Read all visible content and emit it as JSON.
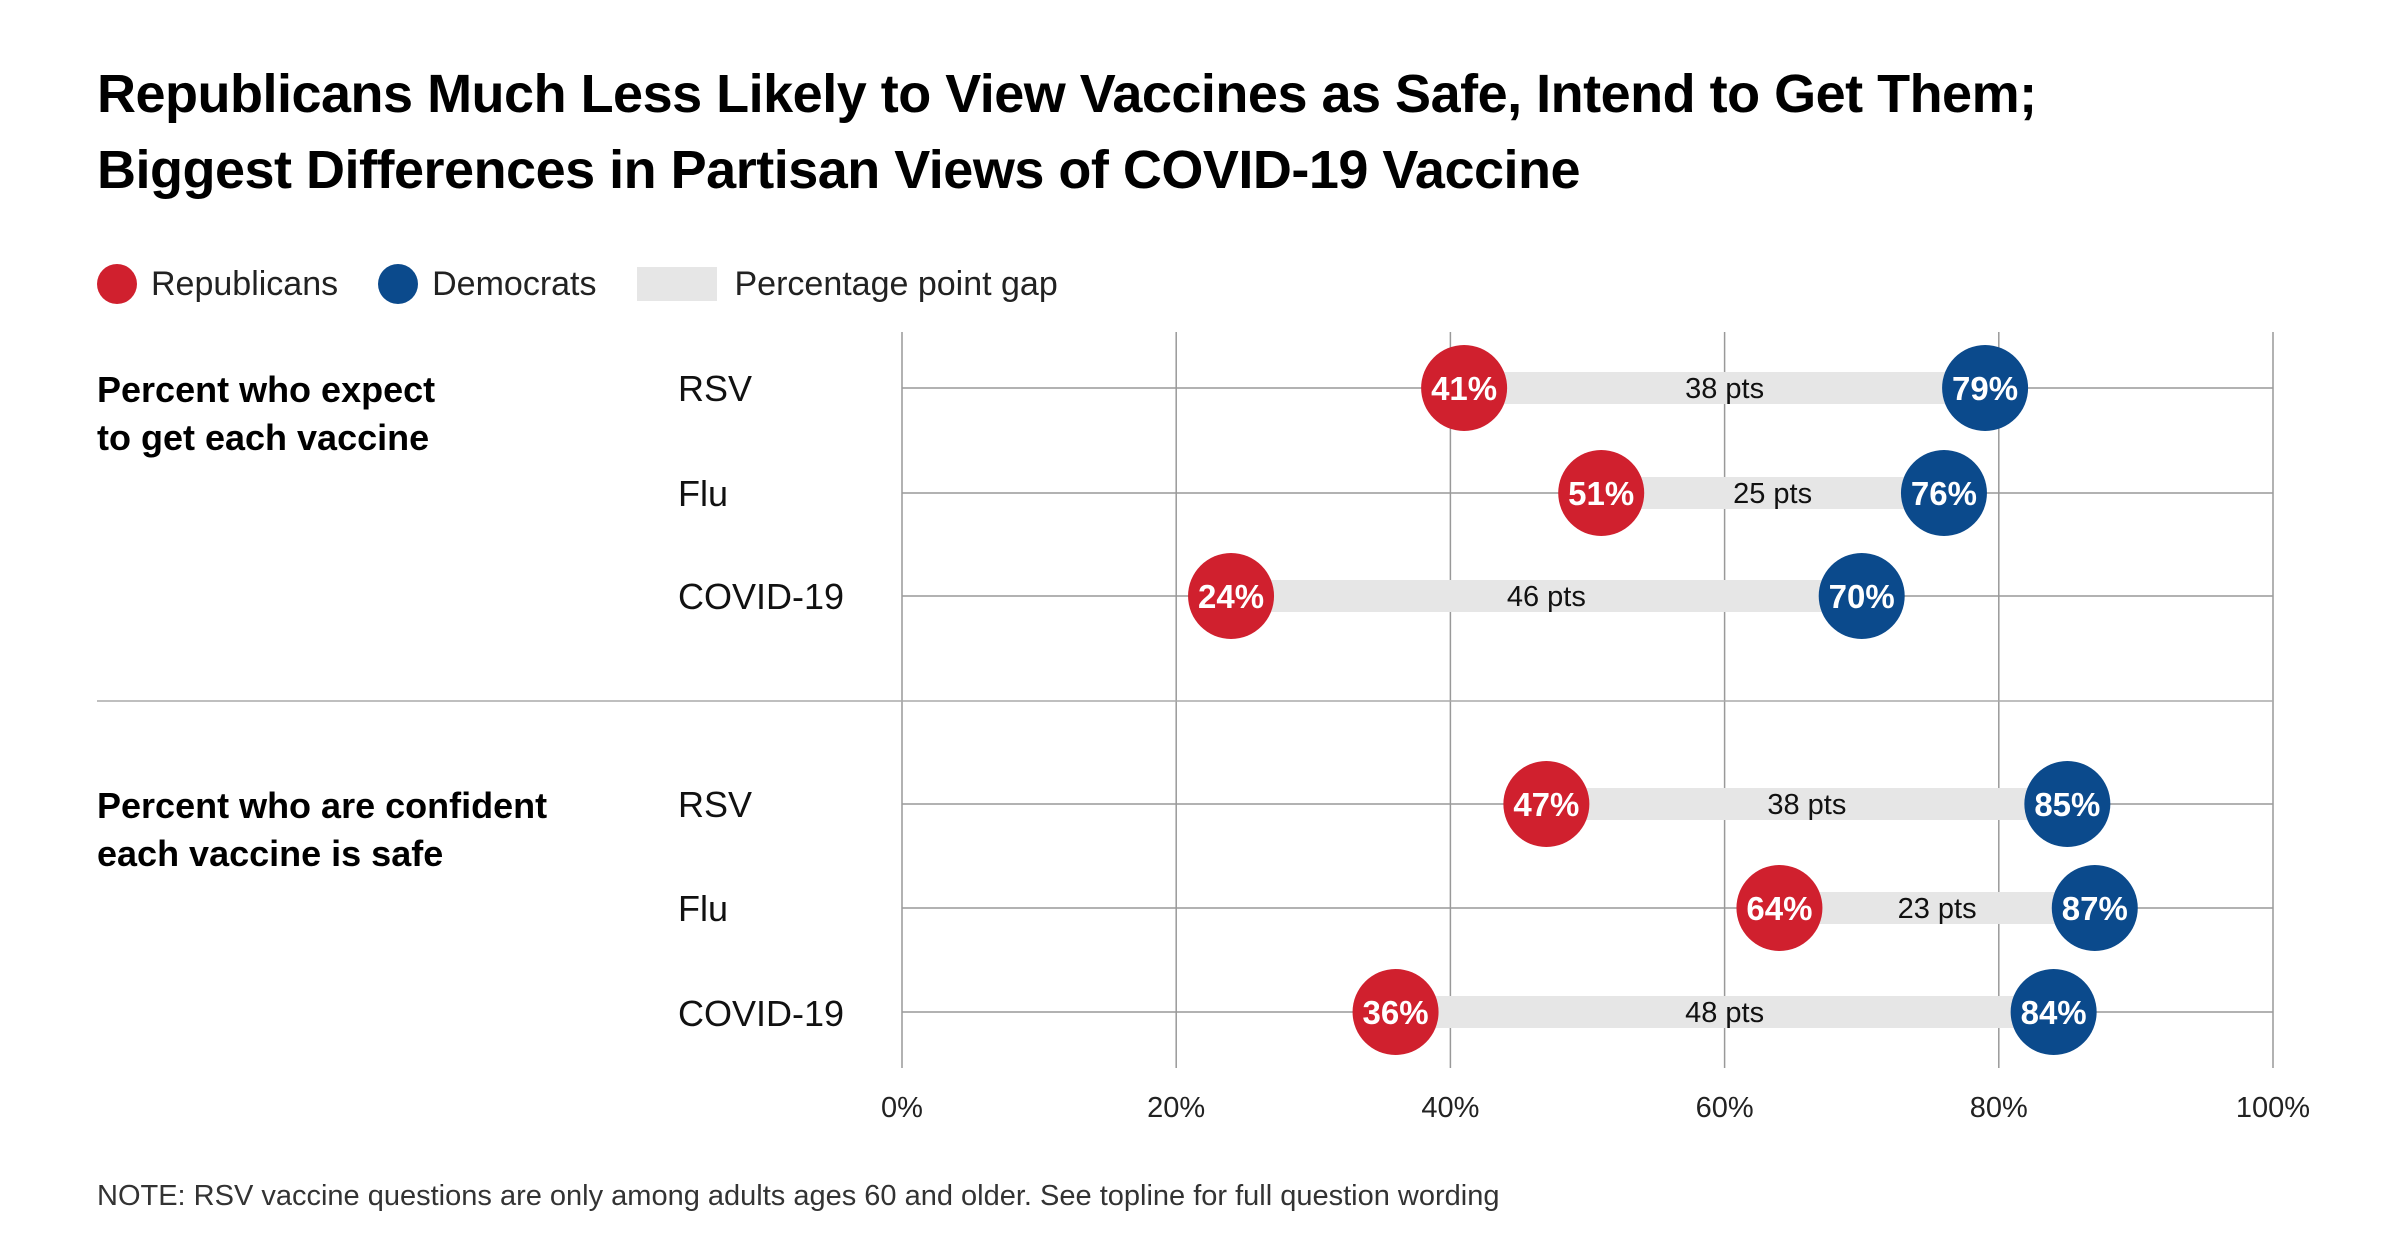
{
  "title_lines": [
    "Republicans Much Less Likely to View Vaccines as Safe, Intend to Get Them;",
    "Biggest Differences in Partisan Views of COVID-19 Vaccine"
  ],
  "legend": {
    "republicans": "Republicans",
    "democrats": "Democrats",
    "gap": "Percentage point gap"
  },
  "colors": {
    "republicans": "#d0202e",
    "democrats": "#0b4a8c",
    "gap": "#e6e6e6",
    "grid": "#999999"
  },
  "note": "NOTE: RSV vaccine questions are only among adults ages 60 and older. See topline for full question wording",
  "chart_data": {
    "type": "dumbbell",
    "xlim": [
      0,
      100
    ],
    "x_ticks": [
      "0%",
      "20%",
      "40%",
      "60%",
      "80%",
      "100%"
    ],
    "groups": [
      {
        "label_lines": [
          "Percent who expect",
          "to get each vaccine"
        ],
        "rows": [
          {
            "category": "RSV",
            "republicans": 41,
            "democrats": 79,
            "republicans_label": "41%",
            "democrats_label": "79%",
            "gap_label": "38 pts"
          },
          {
            "category": "Flu",
            "republicans": 51,
            "democrats": 76,
            "republicans_label": "51%",
            "democrats_label": "76%",
            "gap_label": "25 pts"
          },
          {
            "category": "COVID-19",
            "republicans": 24,
            "democrats": 70,
            "republicans_label": "24%",
            "democrats_label": "70%",
            "gap_label": "46 pts"
          }
        ]
      },
      {
        "label_lines": [
          "Percent who are confident",
          "each vaccine is safe"
        ],
        "rows": [
          {
            "category": "RSV",
            "republicans": 47,
            "democrats": 85,
            "republicans_label": "47%",
            "democrats_label": "85%",
            "gap_label": "38 pts"
          },
          {
            "category": "Flu",
            "republicans": 64,
            "democrats": 87,
            "republicans_label": "64%",
            "democrats_label": "87%",
            "gap_label": "23 pts"
          },
          {
            "category": "COVID-19",
            "republicans": 36,
            "democrats": 84,
            "republicans_label": "36%",
            "democrats_label": "84%",
            "gap_label": "48 pts"
          }
        ]
      }
    ]
  }
}
